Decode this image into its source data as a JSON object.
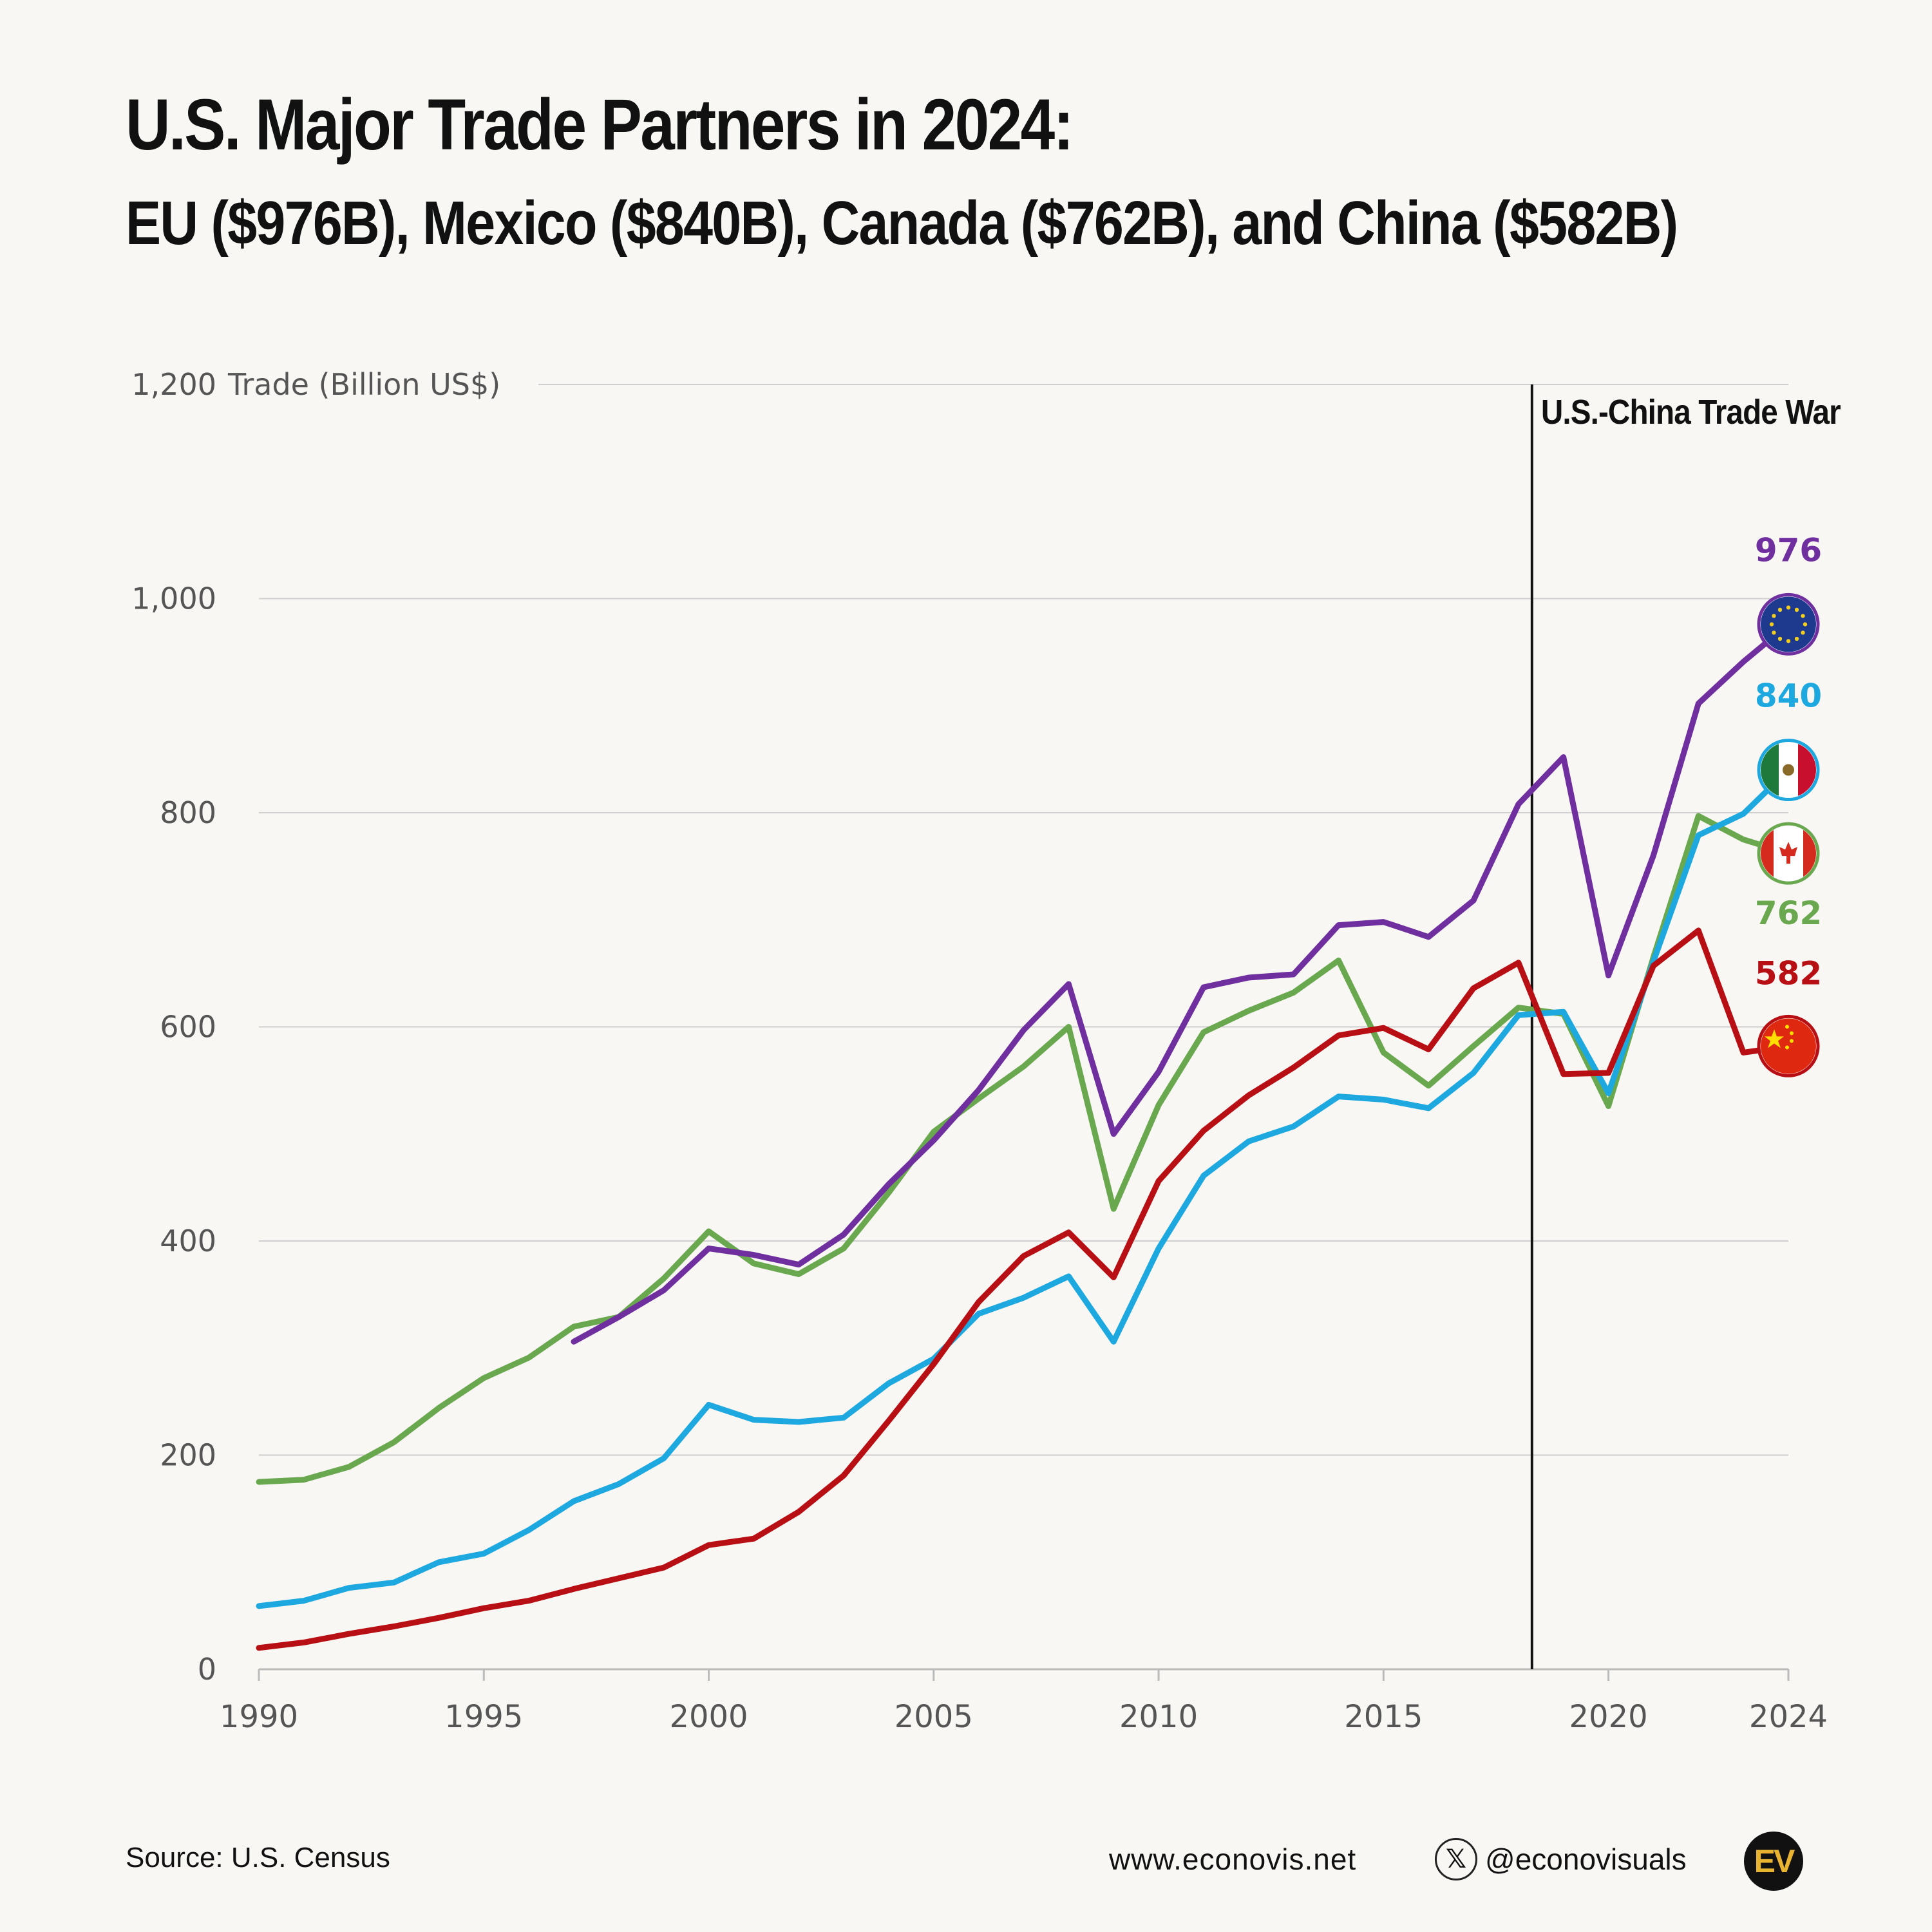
{
  "header": {
    "title": "U.S. Major Trade Partners in 2024:",
    "subtitle": "EU ($976B), Mexico ($840B), Canada ($762B), and China ($582B)"
  },
  "footer": {
    "source": "Source: U.S. Census",
    "website": "www.econovis.net",
    "x_icon": "x-logo-icon",
    "x_glyph": "𝕏",
    "handle": "@econovisuals",
    "logo_text": "EV"
  },
  "chart_data": {
    "type": "line",
    "title": "U.S. Major Trade Partners in 2024:",
    "subtitle": "EU ($976B), Mexico ($840B), Canada ($762B), and China ($582B)",
    "xlabel": "",
    "ylabel": "Trade (Billion US$)",
    "xlim": [
      1990,
      2024
    ],
    "ylim": [
      0,
      1200
    ],
    "x_ticks": [
      1990,
      1995,
      2000,
      2005,
      2010,
      2015,
      2020,
      2024
    ],
    "y_ticks": [
      0,
      200,
      400,
      600,
      800,
      1000,
      1200
    ],
    "y_tick_labels": [
      "0",
      "200",
      "400",
      "600",
      "800",
      "1,000",
      "1,200"
    ],
    "grid": true,
    "annotation": {
      "x": 2018.3,
      "label": "U.S.-China Trade War"
    },
    "series": [
      {
        "name": "EU",
        "color": "#6f2f9f",
        "end_label": "976",
        "icon": "eu-flag-icon",
        "x": [
          1997,
          1998,
          1999,
          2000,
          2001,
          2002,
          2003,
          2004,
          2005,
          2006,
          2007,
          2008,
          2009,
          2010,
          2011,
          2012,
          2013,
          2014,
          2015,
          2016,
          2017,
          2018,
          2019,
          2020,
          2021,
          2022,
          2023,
          2024
        ],
        "values": [
          306,
          329,
          354,
          393,
          387,
          378,
          406,
          453,
          494,
          541,
          597,
          640,
          500,
          558,
          637,
          646,
          649,
          695,
          698,
          684,
          718,
          808,
          852,
          648,
          760,
          902,
          941,
          976
        ]
      },
      {
        "name": "Mexico",
        "color": "#1ea8e0",
        "end_label": "840",
        "icon": "mexico-flag-icon",
        "x": [
          1990,
          1991,
          1992,
          1993,
          1994,
          1995,
          1996,
          1997,
          1998,
          1999,
          2000,
          2001,
          2002,
          2003,
          2004,
          2005,
          2006,
          2007,
          2008,
          2009,
          2010,
          2011,
          2012,
          2013,
          2014,
          2015,
          2016,
          2017,
          2018,
          2019,
          2020,
          2021,
          2022,
          2023,
          2024
        ],
        "values": [
          59,
          64,
          76,
          81,
          100,
          108,
          130,
          157,
          173,
          197,
          247,
          233,
          231,
          235,
          267,
          290,
          332,
          347,
          367,
          306,
          393,
          461,
          493,
          507,
          535,
          532,
          524,
          557,
          611,
          614,
          538,
          661,
          779,
          799,
          840
        ]
      },
      {
        "name": "Canada",
        "color": "#6aa84f",
        "end_label": "762",
        "icon": "canada-flag-icon",
        "x": [
          1990,
          1991,
          1992,
          1993,
          1994,
          1995,
          1996,
          1997,
          1998,
          1999,
          2000,
          2001,
          2002,
          2003,
          2004,
          2005,
          2006,
          2007,
          2008,
          2009,
          2010,
          2011,
          2012,
          2013,
          2014,
          2015,
          2016,
          2017,
          2018,
          2019,
          2020,
          2021,
          2022,
          2023,
          2024
        ],
        "values": [
          175,
          177,
          189,
          212,
          244,
          272,
          291,
          320,
          329,
          365,
          409,
          379,
          369,
          393,
          445,
          502,
          533,
          563,
          600,
          430,
          527,
          595,
          615,
          632,
          662,
          576,
          545,
          582,
          618,
          612,
          526,
          665,
          797,
          775,
          762
        ]
      },
      {
        "name": "China",
        "color": "#b80f14",
        "end_label": "582",
        "icon": "china-flag-icon",
        "x": [
          1990,
          1991,
          1992,
          1993,
          1994,
          1995,
          1996,
          1997,
          1998,
          1999,
          2000,
          2001,
          2002,
          2003,
          2004,
          2005,
          2006,
          2007,
          2008,
          2009,
          2010,
          2011,
          2012,
          2013,
          2014,
          2015,
          2016,
          2017,
          2018,
          2019,
          2020,
          2021,
          2022,
          2023,
          2024
        ],
        "values": [
          20,
          25,
          33,
          40,
          48,
          57,
          64,
          75,
          85,
          95,
          116,
          122,
          147,
          181,
          232,
          285,
          343,
          386,
          408,
          366,
          456,
          503,
          536,
          562,
          592,
          599,
          579,
          636,
          660,
          556,
          557,
          657,
          690,
          576,
          582
        ]
      }
    ]
  }
}
